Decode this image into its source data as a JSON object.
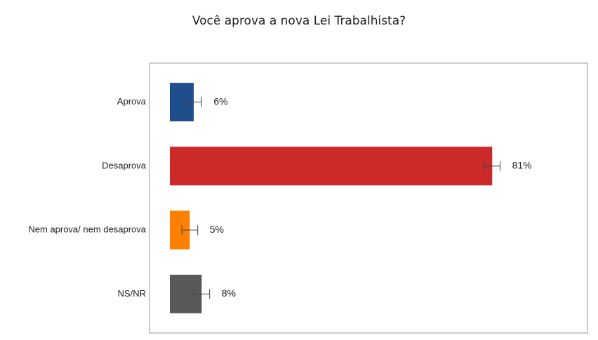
{
  "chart_data": {
    "type": "bar",
    "title": "Você aprova a nova Lei Trabalhista?",
    "categories": [
      "Aprova",
      "Desaprova",
      "Nem aprova/ nem desaprova",
      "NS/NR"
    ],
    "values": [
      6,
      81,
      5,
      8
    ],
    "value_labels": [
      "6%",
      "81%",
      "5%",
      "8%"
    ],
    "errors": [
      2,
      2,
      2,
      2
    ],
    "colors": [
      "#1f4e8c",
      "#cc2929",
      "#ff8000",
      "#595959"
    ]
  }
}
